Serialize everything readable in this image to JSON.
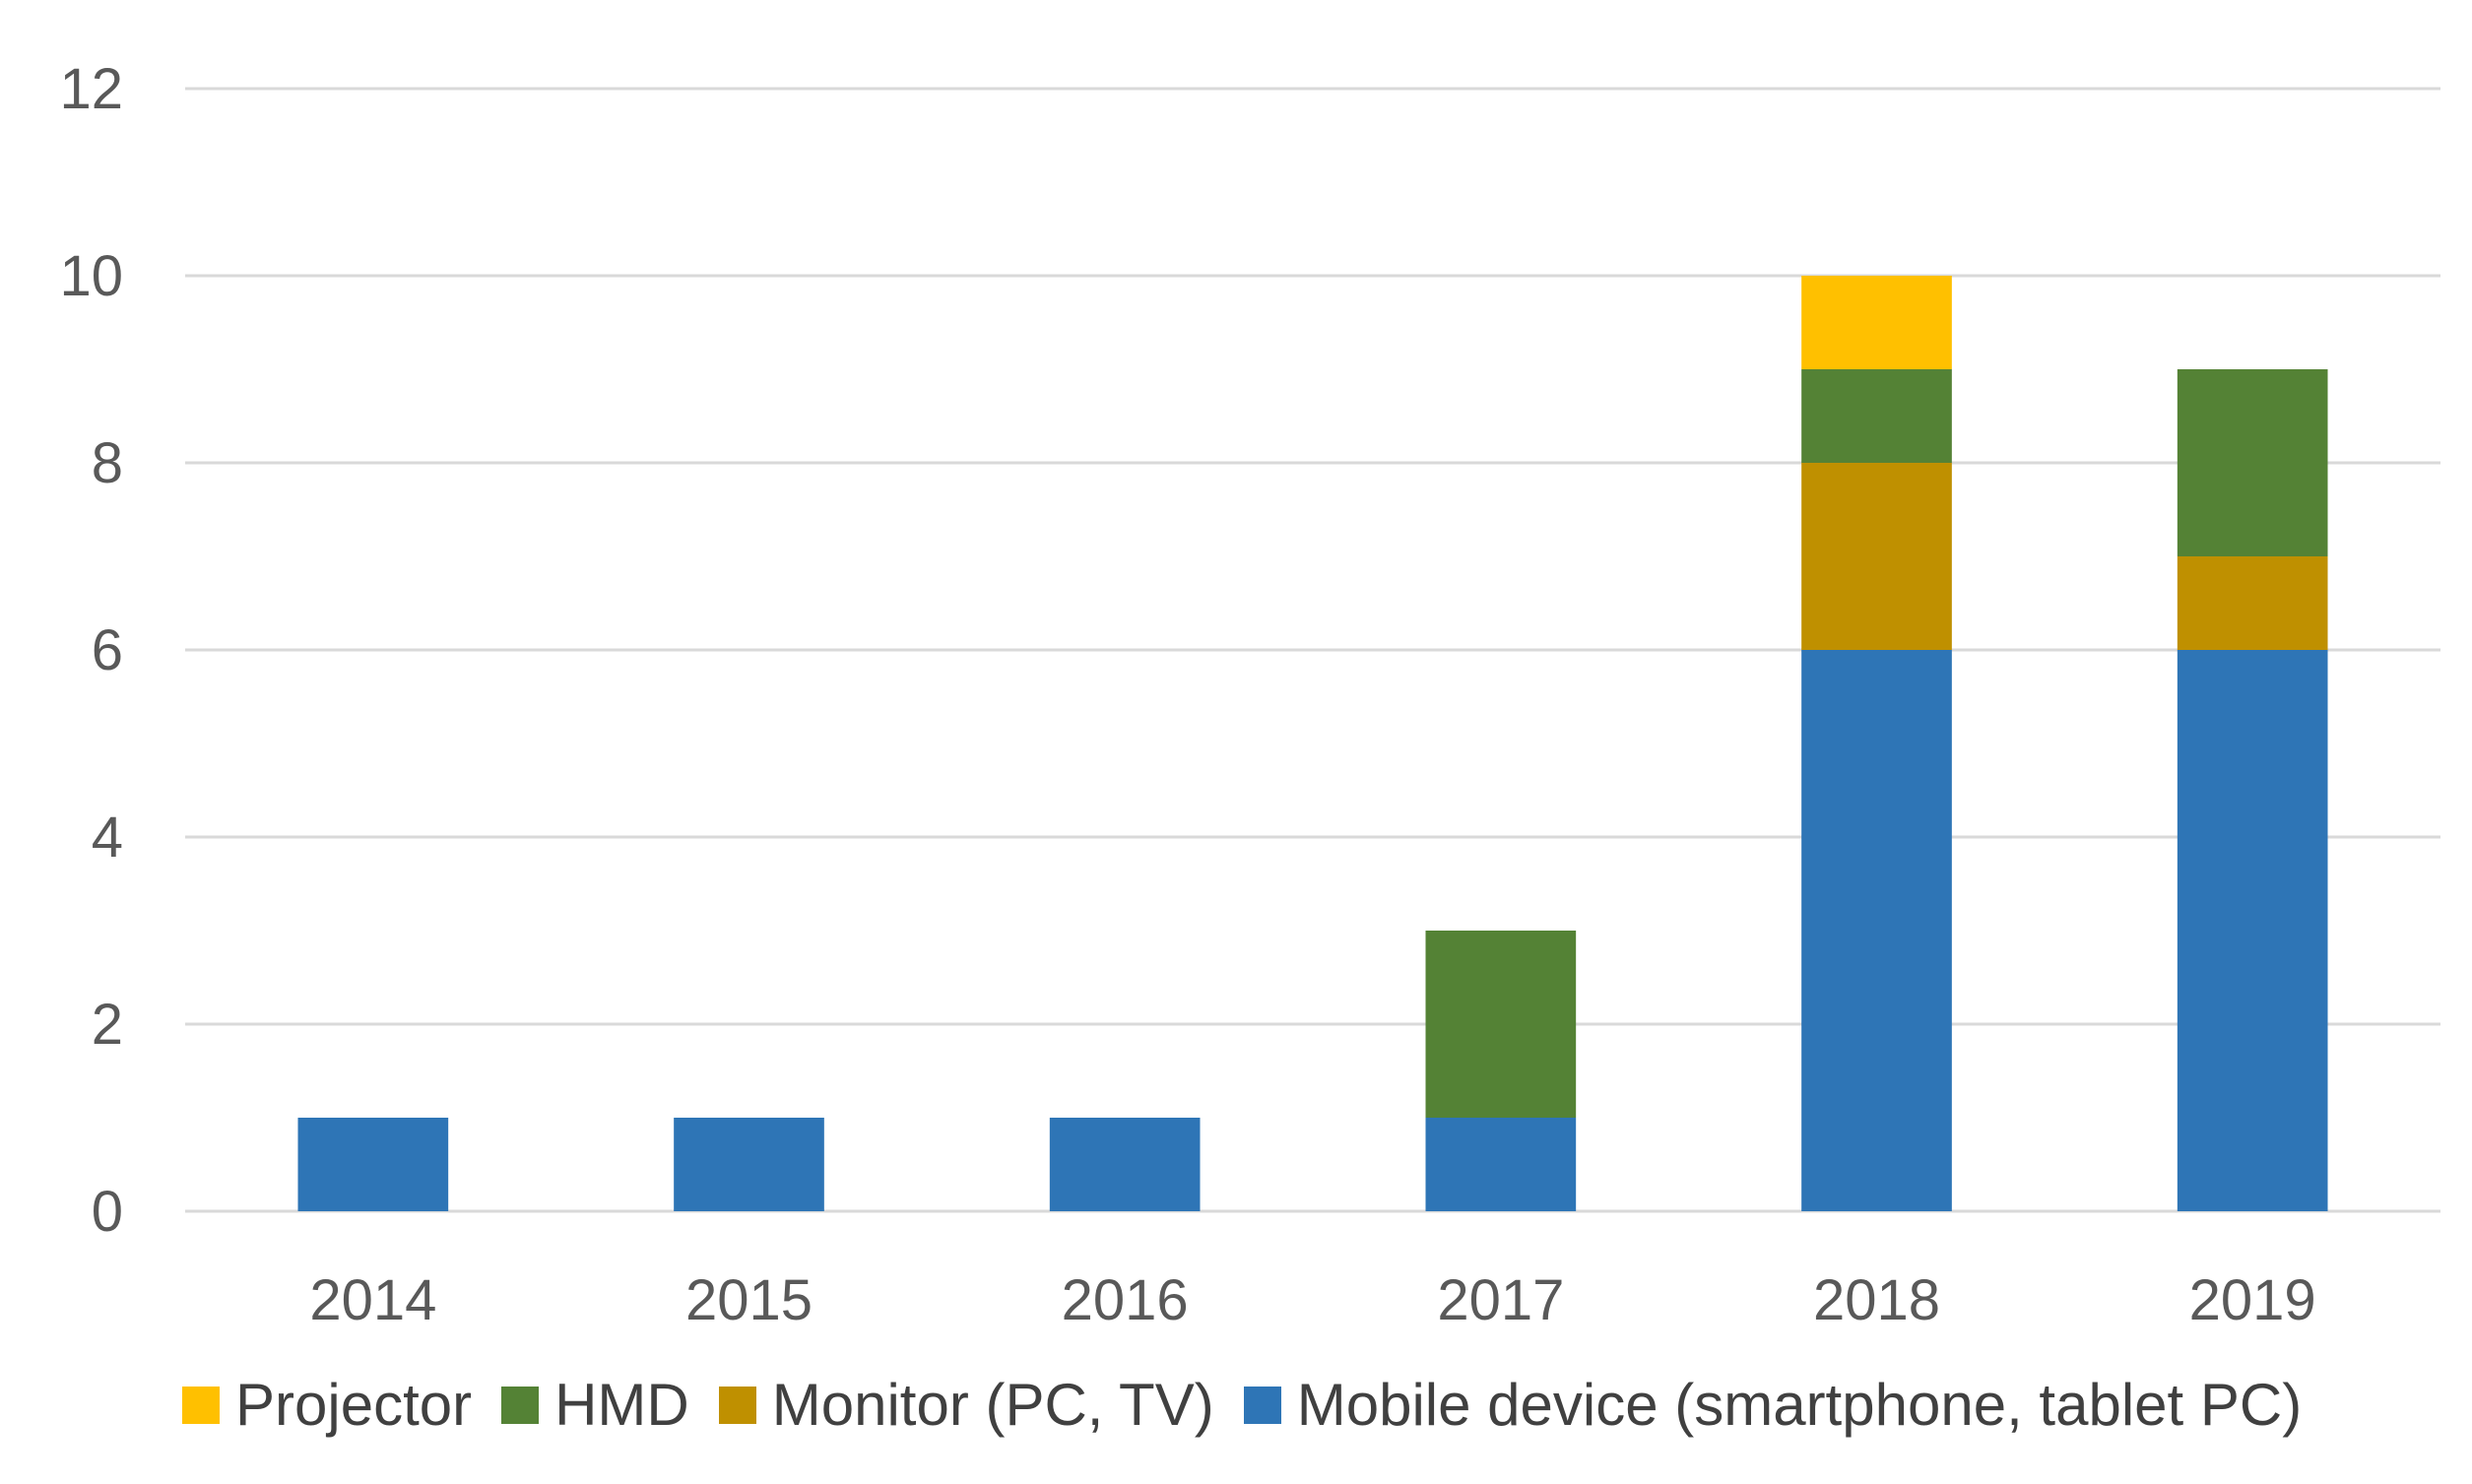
{
  "chart_data": {
    "type": "bar",
    "stacked": true,
    "categories": [
      "2014",
      "2015",
      "2016",
      "2017",
      "2018",
      "2019"
    ],
    "series": [
      {
        "name": "Mobile device (smartphone, tablet PC)",
        "color": "#2e75b6",
        "values": [
          1,
          1,
          1,
          1,
          6,
          6
        ]
      },
      {
        "name": "Monitor (PC, TV)",
        "color": "#bf9000",
        "values": [
          0,
          0,
          0,
          0,
          2,
          1
        ]
      },
      {
        "name": "HMD",
        "color": "#548235",
        "values": [
          0,
          0,
          0,
          2,
          1,
          2
        ]
      },
      {
        "name": "Projector",
        "color": "#ffc000",
        "values": [
          0,
          0,
          0,
          0,
          1,
          0
        ]
      }
    ],
    "legend_order": [
      "Projector",
      "HMD",
      "Monitor (PC, TV)",
      "Mobile device (smartphone, tablet PC)"
    ],
    "ylim": [
      0,
      12
    ],
    "yticks": [
      "0",
      "2",
      "4",
      "6",
      "8",
      "10",
      "12"
    ],
    "grid": true,
    "legend_position": "bottom",
    "title": "",
    "xlabel": "",
    "ylabel": ""
  }
}
